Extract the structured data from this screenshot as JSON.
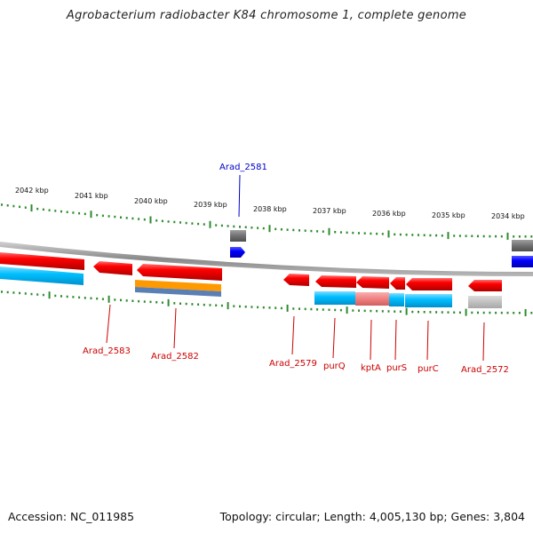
{
  "header": {
    "title": "Agrobacterium radiobacter K84 chromosome 1, complete genome"
  },
  "footer": {
    "accession": "Accession: NC_011985",
    "summary": "Topology: circular; Length: 4,005,130 bp; Genes: 3,804"
  },
  "map": {
    "kbp_labels": [
      "2042 kbp",
      "2041 kbp",
      "2040 kbp",
      "2039 kbp",
      "2038 kbp",
      "2037 kbp",
      "2036 kbp",
      "2035 kbp",
      "2034 kbp"
    ],
    "gene_labels": [
      {
        "name": "Arad_2583",
        "color": "#cc0000"
      },
      {
        "name": "Arad_2582",
        "color": "#cc0000"
      },
      {
        "name": "Arad_2581",
        "color": "#0000cc"
      },
      {
        "name": "Arad_2579",
        "color": "#cc0000"
      },
      {
        "name": "purQ",
        "color": "#cc0000"
      },
      {
        "name": "kptA",
        "color": "#cc0000"
      },
      {
        "name": "purS",
        "color": "#cc0000"
      },
      {
        "name": "purC",
        "color": "#cc0000"
      },
      {
        "name": "Arad_2572",
        "color": "#cc0000"
      }
    ],
    "colors": {
      "gene_red": "#ff0000",
      "gene_blue": "#0000ff",
      "cds_cyan": "#00bfff",
      "cds_orange": "#ff9900",
      "cds_steel": "#5a7fb5",
      "cds_pink": "#f08080",
      "cds_gray": "#c0c0c0",
      "backbone": "#9a9a9a",
      "tick_green": "#2e8b2e"
    }
  }
}
